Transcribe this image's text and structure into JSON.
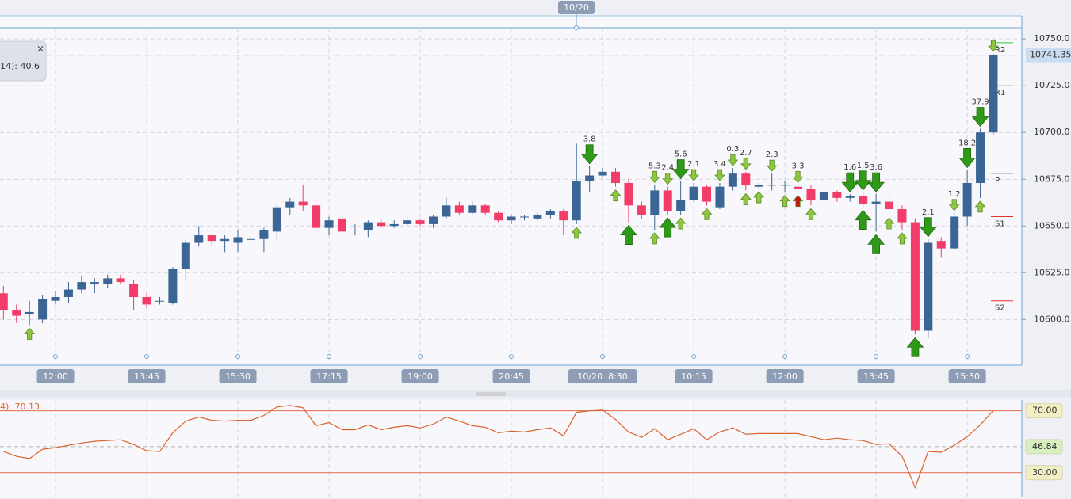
{
  "chart_data": [
    {
      "type": "candlestick",
      "categories": [
        null,
        null,
        null,
        null,
        "12:00",
        null,
        null,
        null,
        null,
        null,
        null,
        "13:45",
        null,
        null,
        null,
        null,
        null,
        null,
        "15:30",
        null,
        null,
        null,
        null,
        null,
        null,
        "17:15",
        null,
        null,
        null,
        null,
        null,
        null,
        "19:00",
        null,
        null,
        null,
        null,
        null,
        null,
        "20:45",
        null,
        null,
        null,
        null,
        null,
        null,
        "10/20  8:30",
        null,
        null,
        null,
        null,
        null,
        null,
        "10:15",
        null,
        null,
        null,
        null,
        null,
        null,
        "12:00",
        null,
        null,
        null,
        null,
        null,
        null,
        "13:45",
        null,
        null,
        null,
        null,
        null,
        null,
        "15:30",
        null,
        null
      ],
      "open": [
        10614,
        10605,
        10603,
        10600,
        10610,
        10612,
        10616,
        10619,
        10619,
        10622,
        10619,
        10612,
        10610,
        10609,
        10627,
        10641,
        10645,
        10642,
        10641,
        10643,
        10643,
        10647,
        10660,
        10663,
        10661,
        10649,
        10654,
        10648,
        10648,
        10652,
        10650,
        10651,
        10653,
        10651,
        10655,
        10661,
        10657,
        10661,
        10657,
        10653,
        10655,
        10654,
        10656,
        10658,
        10653,
        10674,
        10677,
        10679,
        10673,
        10661,
        10656,
        10669,
        10658,
        10664,
        10671,
        10660,
        10671,
        10678,
        10671,
        10672,
        10672,
        10671,
        10670,
        10664,
        10668,
        10665,
        10666,
        10662,
        10663,
        10659,
        10652,
        10594,
        10642,
        10638,
        10655,
        10673,
        10700
      ],
      "high": [
        10618,
        10608,
        10610,
        10613,
        10615,
        10620,
        10623,
        10622,
        10624,
        10624,
        10621,
        10614,
        10612,
        10628,
        10643,
        10650,
        10646,
        10645,
        10648,
        10660,
        10649,
        10662,
        10665,
        10672,
        10665,
        10655,
        10657,
        10651,
        10653,
        10654,
        10653,
        10655,
        10654,
        10656,
        10665,
        10663,
        10663,
        10662,
        10658,
        10656,
        10656,
        10657,
        10659,
        10659,
        10694,
        10682,
        10681,
        10681,
        10675,
        10663,
        10672,
        10671,
        10674,
        10673,
        10672,
        10673,
        10681,
        10679,
        10673,
        10678,
        10674,
        10672,
        10672,
        10669,
        10669,
        10667,
        10668,
        10667,
        10668,
        10661,
        10654,
        10643,
        10644,
        10657,
        10680,
        10702,
        10742
      ],
      "low": [
        10600,
        10598,
        10597,
        10598,
        10608,
        10609,
        10614,
        10614,
        10617,
        10619,
        10605,
        10606,
        10608,
        10608,
        10621,
        10639,
        10640,
        10636,
        10636,
        10638,
        10636,
        10643,
        10656,
        10658,
        10647,
        10645,
        10642,
        10645,
        10644,
        10649,
        10649,
        10650,
        10650,
        10649,
        10654,
        10656,
        10656,
        10656,
        10652,
        10651,
        10653,
        10653,
        10654,
        10645,
        10651,
        10668,
        10676,
        10671,
        10652,
        10654,
        10648,
        10656,
        10656,
        10663,
        10661,
        10659,
        10669,
        10669,
        10670,
        10669,
        10668,
        10668,
        10661,
        10663,
        10663,
        10663,
        10660,
        10647,
        10656,
        10648,
        10592,
        10590,
        10633,
        10637,
        10650,
        10665,
        10699
      ],
      "close": [
        10605,
        10602,
        10604,
        10611,
        10612,
        10616,
        10620,
        10620,
        10622,
        10620,
        10612,
        10608,
        10610,
        10627,
        10641,
        10645,
        10642,
        10643,
        10644,
        10643,
        10648,
        10660,
        10663,
        10661,
        10649,
        10653,
        10647,
        10648,
        10652,
        10650,
        10651,
        10653,
        10651,
        10655,
        10661,
        10657,
        10661,
        10657,
        10653,
        10655,
        10655,
        10656,
        10658,
        10653,
        10674,
        10677,
        10679,
        10673,
        10661,
        10656,
        10669,
        10658,
        10664,
        10671,
        10663,
        10671,
        10678,
        10672,
        10672,
        10672,
        10672,
        10670,
        10664,
        10668,
        10665,
        10666,
        10662,
        10663,
        10659,
        10652,
        10594,
        10641,
        10638,
        10655,
        10673,
        10700,
        10741.35
      ],
      "up_color": "#3b6594",
      "down_color": "#f23c69",
      "ylim": [
        10576,
        10756
      ],
      "yticks": [
        {
          "value": 10600,
          "label": "10600.0"
        },
        {
          "value": 10625,
          "label": "10625.0"
        },
        {
          "value": 10650,
          "label": "10650.0"
        },
        {
          "value": 10675,
          "label": "10675.0"
        },
        {
          "value": 10700,
          "label": "10700.0"
        },
        {
          "value": 10725,
          "label": "10725.0"
        },
        {
          "value": 10750,
          "label": "10750.0"
        }
      ],
      "grid": true,
      "last_price": 10741.35,
      "top_date": "10/20",
      "indicator_box": "14): 40.6",
      "pivots": [
        {
          "label": "R2",
          "value": 10748,
          "color": "#33cc33"
        },
        {
          "label": "R1",
          "value": 10725,
          "color": "#33cc33"
        },
        {
          "label": "P",
          "value": 10678,
          "color": "#aaaaaa"
        },
        {
          "label": "S1",
          "value": 10655,
          "color": "#dd3333"
        },
        {
          "label": "S2",
          "value": 10610,
          "color": "#dd3333"
        }
      ],
      "signal_color": "#2f9a17",
      "signal_color_small": "#8ec63f",
      "signals": [
        {
          "candle": 45,
          "dir": "down",
          "size": "large",
          "label": "3.8"
        },
        {
          "candle": 50,
          "dir": "down",
          "size": "small",
          "label": "5.3"
        },
        {
          "candle": 51,
          "dir": "down",
          "size": "small",
          "label": "2.4"
        },
        {
          "candle": 52,
          "dir": "down",
          "size": "large",
          "label": "5.6"
        },
        {
          "candle": 53,
          "dir": "down",
          "size": "small",
          "label": "2.1"
        },
        {
          "candle": 55,
          "dir": "down",
          "size": "small",
          "label": "3.4"
        },
        {
          "candle": 56,
          "dir": "down",
          "size": "small",
          "label": "0.3"
        },
        {
          "candle": 57,
          "dir": "down",
          "size": "small",
          "label": "2.7"
        },
        {
          "candle": 59,
          "dir": "down",
          "size": "small",
          "label": "2.3"
        },
        {
          "candle": 61,
          "dir": "down",
          "size": "small",
          "label": "3.3"
        },
        {
          "candle": 65,
          "dir": "down",
          "size": "large",
          "label": "1.6"
        },
        {
          "candle": 66,
          "dir": "down",
          "size": "large",
          "label": "1.5"
        },
        {
          "candle": 67,
          "dir": "down",
          "size": "large",
          "label": "3.6"
        },
        {
          "candle": 71,
          "dir": "down",
          "size": "large",
          "label": "2.1"
        },
        {
          "candle": 73,
          "dir": "down",
          "size": "small",
          "label": "1.2"
        },
        {
          "candle": 74,
          "dir": "down",
          "size": "large",
          "label": "18.2"
        },
        {
          "candle": 75,
          "dir": "down",
          "size": "large",
          "label": "37.9"
        },
        {
          "candle": 76,
          "dir": "down",
          "size": "small"
        },
        {
          "candle": 2,
          "dir": "up",
          "size": "small"
        },
        {
          "candle": 44,
          "dir": "up",
          "size": "small"
        },
        {
          "candle": 47,
          "dir": "up",
          "size": "small"
        },
        {
          "candle": 48,
          "dir": "up",
          "size": "large"
        },
        {
          "candle": 50,
          "dir": "up",
          "size": "small"
        },
        {
          "candle": 51,
          "dir": "up",
          "size": "large"
        },
        {
          "candle": 52,
          "dir": "up",
          "size": "small"
        },
        {
          "candle": 54,
          "dir": "up",
          "size": "small"
        },
        {
          "candle": 57,
          "dir": "up",
          "size": "small"
        },
        {
          "candle": 58,
          "dir": "up",
          "size": "small"
        },
        {
          "candle": 60,
          "dir": "up",
          "size": "small"
        },
        {
          "candle": 61,
          "dir": "up",
          "size": "small",
          "color": "#cc1111"
        },
        {
          "candle": 62,
          "dir": "up",
          "size": "small"
        },
        {
          "candle": 66,
          "dir": "up",
          "size": "large"
        },
        {
          "candle": 67,
          "dir": "up",
          "size": "large"
        },
        {
          "candle": 68,
          "dir": "up",
          "size": "small"
        },
        {
          "candle": 69,
          "dir": "up",
          "size": "small"
        },
        {
          "candle": 70,
          "dir": "up",
          "size": "large"
        },
        {
          "candle": 75,
          "dir": "up",
          "size": "small"
        }
      ]
    },
    {
      "type": "line",
      "title": "4): 70.13",
      "color": "#d9622b",
      "values": [
        43.7,
        40.6,
        39.1,
        45.2,
        46.2,
        47.7,
        49.2,
        50.3,
        50.8,
        51.3,
        48.2,
        44.2,
        43.7,
        55.8,
        63.4,
        66.0,
        63.9,
        63.4,
        63.9,
        63.9,
        67.0,
        72.5,
        73.5,
        72.0,
        60.4,
        62.4,
        57.8,
        57.8,
        60.9,
        57.8,
        59.4,
        60.4,
        58.9,
        61.4,
        66.0,
        63.4,
        60.4,
        59.4,
        55.8,
        56.8,
        56.3,
        57.8,
        58.9,
        53.8,
        69.0,
        70.0,
        70.5,
        64.4,
        56.3,
        52.8,
        58.4,
        51.3,
        54.8,
        58.4,
        51.3,
        56.3,
        58.9,
        54.8,
        55.3,
        55.3,
        55.3,
        55.3,
        53.3,
        51.3,
        52.3,
        51.3,
        50.8,
        48.2,
        48.7,
        40.6,
        20.4,
        43.7,
        43.2,
        47.7,
        53.3,
        60.9,
        70.13
      ],
      "ylim": [
        14,
        77
      ],
      "yticks": [
        {
          "value": 70,
          "label": "70.00",
          "color": "#e2674a",
          "box": "#f2efc4"
        },
        {
          "value": 46.84,
          "label": "46.84",
          "color": "#b0b0b0",
          "box": "#d6eec0"
        },
        {
          "value": 30,
          "label": "30.00",
          "color": "#e2674a",
          "box": "#f2efc4"
        }
      ]
    }
  ]
}
